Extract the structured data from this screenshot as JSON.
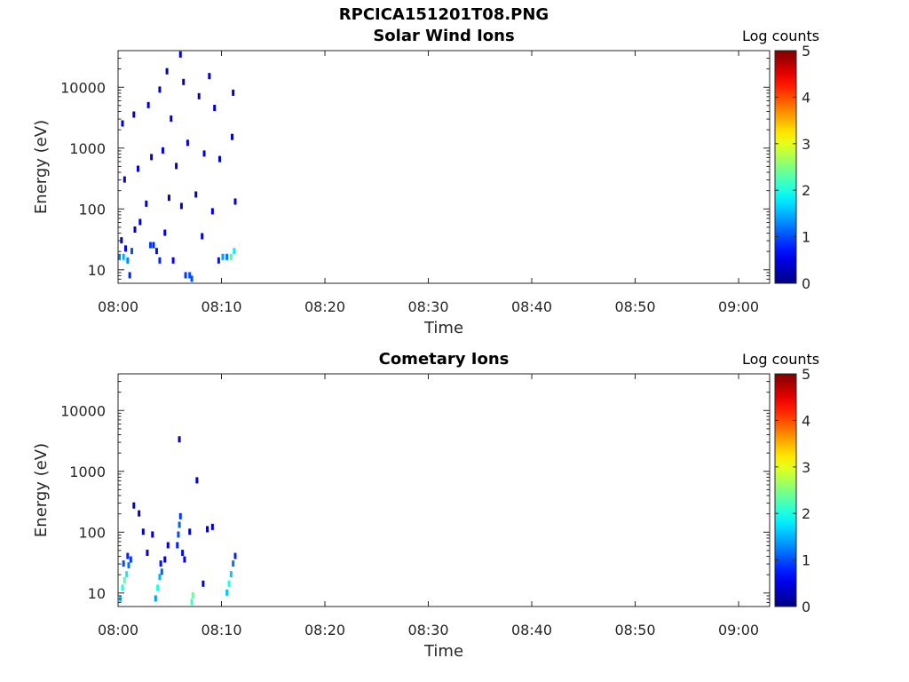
{
  "figure": {
    "title": "RPCICA151201T08.PNG"
  },
  "chart_data": [
    {
      "type": "heatmap",
      "title": "Solar Wind Ions",
      "xlabel": "Time",
      "ylabel": "Energy (eV)",
      "xticks": [
        "08:00",
        "08:10",
        "08:20",
        "08:30",
        "08:40",
        "08:50",
        "09:00"
      ],
      "xlim_minutes": [
        0,
        63
      ],
      "yscale": "log",
      "ylim": [
        6,
        40000
      ],
      "yticks": [
        10,
        100,
        1000,
        10000
      ],
      "ytick_labels": [
        "10",
        "100",
        "1000",
        "10000"
      ],
      "colorbar": {
        "label": "Log counts",
        "range": [
          0,
          5
        ],
        "ticks": [
          "0",
          "1",
          "2",
          "3",
          "4",
          "5"
        ],
        "colormap": "jet"
      },
      "data_extent_minutes": [
        0,
        11.7
      ],
      "cells": [
        [
          0.0,
          16,
          1.2
        ],
        [
          0.4,
          16,
          1.5
        ],
        [
          0.8,
          14,
          1.3
        ],
        [
          1.2,
          20,
          1.0
        ],
        [
          0.2,
          30,
          0.5
        ],
        [
          0.6,
          22,
          0.6
        ],
        [
          1.0,
          8,
          0.8
        ],
        [
          3.0,
          25,
          0.9
        ],
        [
          3.3,
          25,
          0.8
        ],
        [
          3.6,
          20,
          0.7
        ],
        [
          3.9,
          14,
          0.8
        ],
        [
          6.8,
          8,
          1.0
        ],
        [
          7.0,
          7,
          1.0
        ],
        [
          6.4,
          8,
          0.9
        ],
        [
          5.2,
          14,
          0.6
        ],
        [
          9.6,
          14,
          0.7
        ],
        [
          10.0,
          16,
          1.4
        ],
        [
          10.4,
          16,
          1.2
        ],
        [
          10.8,
          16,
          2.2
        ],
        [
          11.1,
          20,
          1.8
        ],
        [
          4.4,
          40,
          0.4
        ],
        [
          8.0,
          35,
          0.4
        ],
        [
          1.5,
          45,
          0.4
        ],
        [
          2.0,
          60,
          0.4
        ],
        [
          2.6,
          120,
          0.4
        ],
        [
          4.8,
          150,
          0.4
        ],
        [
          6.0,
          110,
          0.5
        ],
        [
          7.4,
          170,
          0.4
        ],
        [
          9.0,
          90,
          0.5
        ],
        [
          11.2,
          130,
          0.4
        ],
        [
          0.5,
          300,
          0.4
        ],
        [
          1.8,
          450,
          0.4
        ],
        [
          3.1,
          700,
          0.5
        ],
        [
          4.2,
          900,
          0.4
        ],
        [
          5.5,
          500,
          0.4
        ],
        [
          6.6,
          1200,
          0.4
        ],
        [
          8.2,
          800,
          0.5
        ],
        [
          9.7,
          650,
          0.4
        ],
        [
          10.9,
          1500,
          0.4
        ],
        [
          0.3,
          2500,
          0.4
        ],
        [
          1.4,
          3500,
          0.4
        ],
        [
          2.8,
          5000,
          0.4
        ],
        [
          3.9,
          9000,
          0.4
        ],
        [
          5.0,
          3000,
          0.4
        ],
        [
          6.2,
          12000,
          0.4
        ],
        [
          7.7,
          7000,
          0.5
        ],
        [
          9.2,
          4500,
          0.4
        ],
        [
          11.0,
          8000,
          0.4
        ],
        [
          4.6,
          18000,
          0.3
        ],
        [
          5.9,
          34000,
          0.3
        ],
        [
          8.7,
          15000,
          0.3
        ]
      ]
    },
    {
      "type": "heatmap",
      "title": "Cometary Ions",
      "xlabel": "Time",
      "ylabel": "Energy (eV)",
      "xticks": [
        "08:00",
        "08:10",
        "08:20",
        "08:30",
        "08:40",
        "08:50",
        "09:00"
      ],
      "xlim_minutes": [
        0,
        63
      ],
      "yscale": "log",
      "ylim": [
        6,
        40000
      ],
      "yticks": [
        10,
        100,
        1000,
        10000
      ],
      "ytick_labels": [
        "10",
        "100",
        "1000",
        "10000"
      ],
      "colorbar": {
        "label": "Log counts",
        "range": [
          0,
          5
        ],
        "ticks": [
          "0",
          "1",
          "2",
          "3",
          "4",
          "5"
        ],
        "colormap": "jet"
      },
      "data_extent_minutes": [
        0,
        11.7
      ],
      "cells": [
        [
          0.1,
          8,
          1.6
        ],
        [
          0.3,
          12,
          2.0
        ],
        [
          0.5,
          16,
          2.3
        ],
        [
          0.7,
          20,
          1.8
        ],
        [
          0.9,
          28,
          1.2
        ],
        [
          1.1,
          35,
          0.9
        ],
        [
          0.4,
          30,
          1.0
        ],
        [
          0.8,
          40,
          0.8
        ],
        [
          3.5,
          8,
          1.4
        ],
        [
          3.7,
          12,
          2.0
        ],
        [
          3.9,
          18,
          1.5
        ],
        [
          4.1,
          22,
          1.1
        ],
        [
          4.0,
          30,
          0.7
        ],
        [
          7.0,
          7,
          2.2
        ],
        [
          7.1,
          9,
          2.4
        ],
        [
          5.6,
          60,
          0.8
        ],
        [
          5.7,
          90,
          1.0
        ],
        [
          5.8,
          130,
          1.1
        ],
        [
          5.9,
          180,
          0.9
        ],
        [
          6.1,
          45,
          0.7
        ],
        [
          6.3,
          35,
          0.6
        ],
        [
          10.4,
          10,
          1.6
        ],
        [
          10.6,
          14,
          2.0
        ],
        [
          10.8,
          20,
          1.6
        ],
        [
          11.0,
          30,
          1.2
        ],
        [
          11.2,
          40,
          0.8
        ],
        [
          8.1,
          14,
          0.5
        ],
        [
          1.4,
          270,
          0.4
        ],
        [
          1.9,
          200,
          0.4
        ],
        [
          2.3,
          100,
          0.4
        ],
        [
          3.2,
          90,
          0.4
        ],
        [
          4.7,
          60,
          0.4
        ],
        [
          6.8,
          100,
          0.4
        ],
        [
          7.5,
          700,
          0.4
        ],
        [
          8.5,
          110,
          0.4
        ],
        [
          9.0,
          120,
          0.4
        ],
        [
          5.8,
          3300,
          0.4
        ],
        [
          2.7,
          45,
          0.4
        ],
        [
          4.4,
          35,
          0.4
        ]
      ]
    }
  ]
}
